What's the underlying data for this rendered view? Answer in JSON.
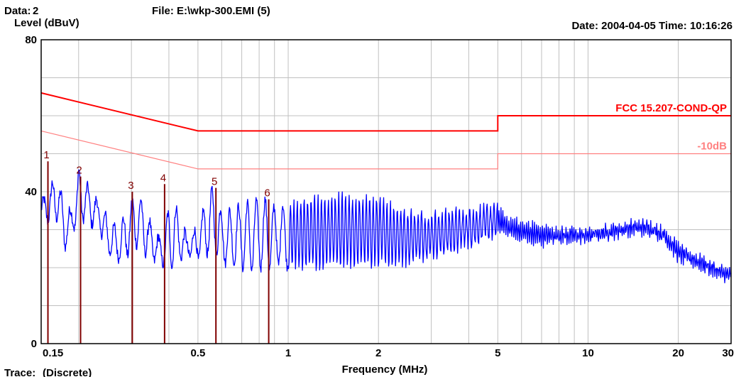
{
  "header": {
    "data_label": "Data:",
    "data_value": "2",
    "file_label": "File: E:\\wkp-300.EMI  (5)",
    "datetime": "Date: 2004-04-05  Time: 10:16:26",
    "trace_label": "Trace:",
    "trace_value": "(Discrete)"
  },
  "colors": {
    "trace": "#0000ff",
    "limit": "#ff0000",
    "limit_minus10": "#ff8080",
    "marker": "#800000",
    "grid": "#c0c0c0",
    "data_value": "#0000ff",
    "trace_value": "#800000"
  },
  "chart_data": {
    "type": "line",
    "ylabel": "Level (dBuV)",
    "xlabel": "Frequency (MHz)",
    "x_scale": "log",
    "xlim": [
      0.15,
      30
    ],
    "ylim": [
      0,
      80
    ],
    "x_ticks": [
      {
        "value": 0.15,
        "label": "0.15"
      },
      {
        "value": 0.5,
        "label": "0.5"
      },
      {
        "value": 1,
        "label": "1"
      },
      {
        "value": 2,
        "label": "2"
      },
      {
        "value": 5,
        "label": "5"
      },
      {
        "value": 10,
        "label": "10"
      },
      {
        "value": 20,
        "label": "20"
      },
      {
        "value": 30,
        "label": "30"
      }
    ],
    "x_gridlines": [
      0.2,
      0.3,
      0.4,
      0.5,
      0.6,
      0.7,
      0.8,
      0.9,
      1,
      2,
      3,
      4,
      5,
      6,
      7,
      8,
      9,
      10,
      20
    ],
    "y_ticks": [
      {
        "value": 0,
        "label": "0"
      },
      {
        "value": 40,
        "label": "40"
      },
      {
        "value": 80,
        "label": "80"
      }
    ],
    "y_gridlines": [
      10,
      20,
      30,
      40,
      50,
      60,
      70
    ],
    "limits": [
      {
        "name": "FCC 15.207-COND-QP",
        "points": [
          [
            0.15,
            66
          ],
          [
            0.5,
            56
          ],
          [
            5,
            56
          ],
          [
            5,
            60
          ],
          [
            30,
            60
          ]
        ]
      },
      {
        "name": "-10dB",
        "points": [
          [
            0.15,
            56
          ],
          [
            0.5,
            46
          ],
          [
            5,
            46
          ],
          [
            5,
            50
          ],
          [
            30,
            50
          ]
        ]
      }
    ],
    "series": [
      {
        "envelope": [
          [
            0.15,
            37,
            33
          ],
          [
            0.16,
            41,
            32
          ],
          [
            0.17,
            45,
            33
          ],
          [
            0.18,
            34,
            25
          ],
          [
            0.19,
            36,
            30
          ],
          [
            0.2,
            46,
            31
          ],
          [
            0.21,
            43,
            33
          ],
          [
            0.22,
            40,
            31
          ],
          [
            0.23,
            38,
            32
          ],
          [
            0.25,
            33,
            24
          ],
          [
            0.27,
            30,
            22
          ],
          [
            0.29,
            35,
            23
          ],
          [
            0.31,
            40,
            26
          ],
          [
            0.33,
            37,
            24
          ],
          [
            0.35,
            31,
            22
          ],
          [
            0.38,
            27,
            21
          ],
          [
            0.41,
            40,
            20
          ],
          [
            0.43,
            34,
            22
          ],
          [
            0.46,
            28,
            23
          ],
          [
            0.5,
            31,
            22
          ],
          [
            0.53,
            37,
            23
          ],
          [
            0.56,
            41,
            25
          ],
          [
            0.6,
            35,
            21
          ],
          [
            0.65,
            35,
            21
          ],
          [
            0.7,
            37,
            20
          ],
          [
            0.75,
            37,
            19
          ],
          [
            0.8,
            38,
            20
          ],
          [
            0.85,
            38,
            19
          ],
          [
            0.9,
            36,
            21
          ],
          [
            1.0,
            37,
            20
          ],
          [
            1.2,
            38,
            20
          ],
          [
            1.5,
            39,
            20
          ],
          [
            2.0,
            38,
            21
          ],
          [
            2.5,
            35,
            21
          ],
          [
            3.0,
            34,
            23
          ],
          [
            3.5,
            35,
            24
          ],
          [
            4.0,
            35,
            26
          ],
          [
            4.5,
            36,
            27
          ],
          [
            5.0,
            36,
            29
          ],
          [
            5.5,
            33,
            28
          ],
          [
            6.0,
            32,
            27
          ],
          [
            7.0,
            31,
            26
          ],
          [
            8.0,
            30,
            27
          ],
          [
            10.0,
            30,
            27
          ],
          [
            12.0,
            31,
            28
          ],
          [
            14.0,
            32,
            29
          ],
          [
            16.0,
            32,
            29
          ],
          [
            18.0,
            30,
            27
          ],
          [
            20.0,
            26,
            22
          ],
          [
            22.0,
            24,
            21
          ],
          [
            25.0,
            22,
            19
          ],
          [
            28.0,
            20,
            17
          ],
          [
            30.0,
            19,
            17
          ]
        ]
      }
    ],
    "markers": [
      {
        "label": "1",
        "freq": 0.158,
        "level": 48
      },
      {
        "label": "2",
        "freq": 0.203,
        "level": 44
      },
      {
        "label": "3",
        "freq": 0.302,
        "level": 40
      },
      {
        "label": "4",
        "freq": 0.387,
        "level": 42
      },
      {
        "label": "5",
        "freq": 0.574,
        "level": 41
      },
      {
        "label": "6",
        "freq": 0.861,
        "level": 38
      }
    ]
  }
}
